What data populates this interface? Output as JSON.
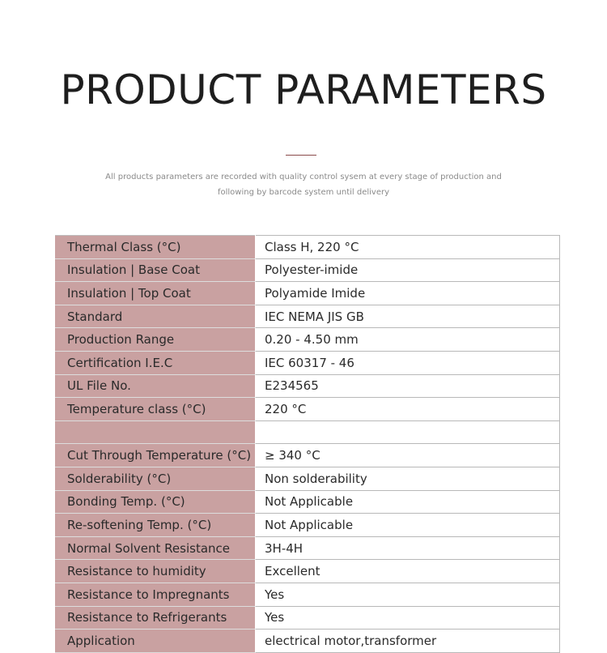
{
  "header": {
    "title": "PRODUCT PARAMETERS",
    "subtitle": "All products parameters are recorded with quality control sysem at every stage of production and following by barcode system until delivery",
    "accent_color": "#8a4a4a"
  },
  "table": {
    "label_bg_color": "#c9a1a1",
    "rows": [
      {
        "label": "Thermal Class (°C)",
        "value": "Class H, 220 °C"
      },
      {
        "label": "Insulation | Base Coat",
        "value": "Polyester-imide"
      },
      {
        "label": "Insulation | Top Coat",
        "value": "Polyamide Imide"
      },
      {
        "label": "Standard",
        "value": "IEC NEMA JIS GB"
      },
      {
        "label": "Production Range",
        "value": "0.20 - 4.50 mm"
      },
      {
        "label": "Certification I.E.C",
        "value": "IEC 60317 - 46"
      },
      {
        "label": "UL File No.",
        "value": "E234565"
      },
      {
        "label": "Temperature class (°C)",
        "value": "220 °C"
      },
      {
        "label": "",
        "value": ""
      },
      {
        "label": "Cut Through Temperature (°C)",
        "value": "≥ 340 °C"
      },
      {
        "label": "Solderability (°C)",
        "value": "Non solderability"
      },
      {
        "label": "Bonding Temp. (°C)",
        "value": "Not Applicable"
      },
      {
        "label": "Re-softening Temp. (°C)",
        "value": "Not Applicable"
      },
      {
        "label": "Normal Solvent Resistance",
        "value": "3H-4H"
      },
      {
        "label": "Resistance to humidity",
        "value": "Excellent"
      },
      {
        "label": "Resistance to Impregnants",
        "value": "Yes"
      },
      {
        "label": "Resistance to Refrigerants",
        "value": "Yes"
      },
      {
        "label": "Application",
        "value": "electrical motor,transformer"
      }
    ]
  }
}
